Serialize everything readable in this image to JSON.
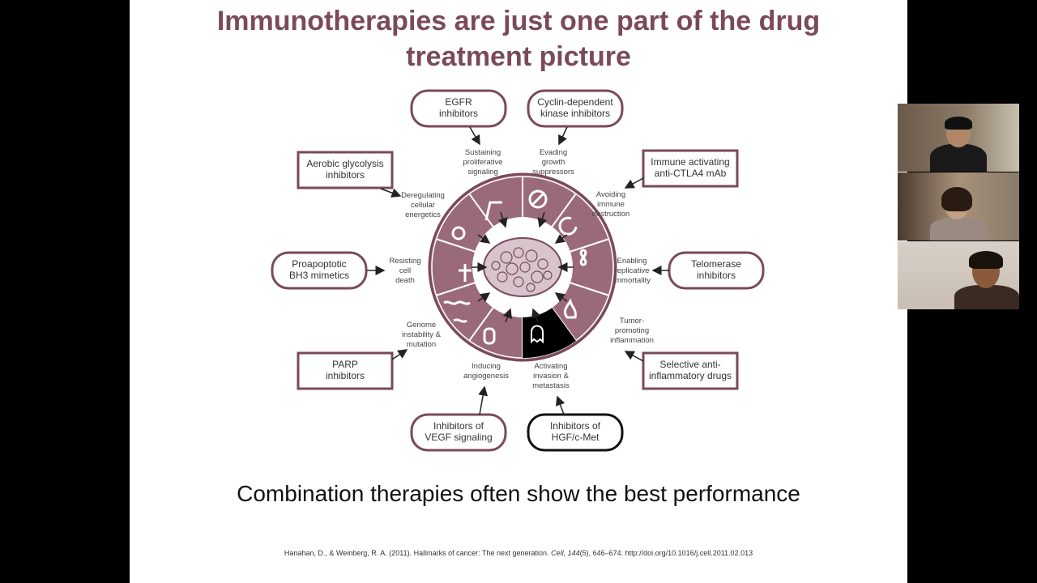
{
  "slide": {
    "title_line1": "Immunotherapies are just one part of the drug",
    "title_line2": "treatment picture",
    "subtitle": "Combination therapies often show the best performance",
    "citation_prefix": "Hanahan, D., & Weinberg, R. A. (2011). Hallmarks of cancer: The next generation. ",
    "citation_journal": "Cell, 144",
    "citation_suffix": "(5), 646–674. http://doi.org/10.1016/j.cell.2011.02.013"
  },
  "diagram": {
    "boxes": {
      "egfr": [
        "EGFR",
        "inhibitors"
      ],
      "cdk": [
        "Cyclin-dependent",
        "kinase inhibitors"
      ],
      "aerobic": [
        "Aerobic glycolysis",
        "inhibitors"
      ],
      "immune": [
        "Immune activating",
        "anti-CTLA4 mAb"
      ],
      "proapoptotic": [
        "Proapoptotic",
        "BH3 mimetics"
      ],
      "telomerase": [
        "Telomerase",
        "inhibitors"
      ],
      "parp": [
        "PARP",
        "inhibitors"
      ],
      "antiinflam": [
        "Selective anti-",
        "inflammatory drugs"
      ],
      "vegf": [
        "Inhibitors of",
        "VEGF signaling"
      ],
      "hgf": [
        "Inhibitors of",
        "HGF/c-Met"
      ]
    },
    "hallmarks": {
      "proliferative": [
        "Sustaining",
        "proliferative",
        "signaling"
      ],
      "growth": [
        "Evading",
        "growth",
        "suppressors"
      ],
      "energetics": [
        "Deregulating",
        "cellular",
        "energetics"
      ],
      "immune_destruction": [
        "Avoiding",
        "immune",
        "destruction"
      ],
      "cell_death": [
        "Resisting",
        "cell",
        "death"
      ],
      "immortality": [
        "Enabling",
        "replicative",
        "immortality"
      ],
      "genome": [
        "Genome",
        "instability &",
        "mutation"
      ],
      "inflammation": [
        "Tumor-",
        "promoting",
        "inflammation"
      ],
      "angiogenesis": [
        "Inducing",
        "angiogenesis"
      ],
      "invasion": [
        "Activating",
        "invasion &",
        "metastasis"
      ]
    }
  },
  "colors": {
    "maroon": "#7a4a5a",
    "light_maroon": "#9a6a7a",
    "black_panel": "#000000"
  },
  "video_tiles": [
    {
      "icon": "participant-video-1"
    },
    {
      "icon": "participant-video-2"
    },
    {
      "icon": "participant-video-3"
    }
  ]
}
